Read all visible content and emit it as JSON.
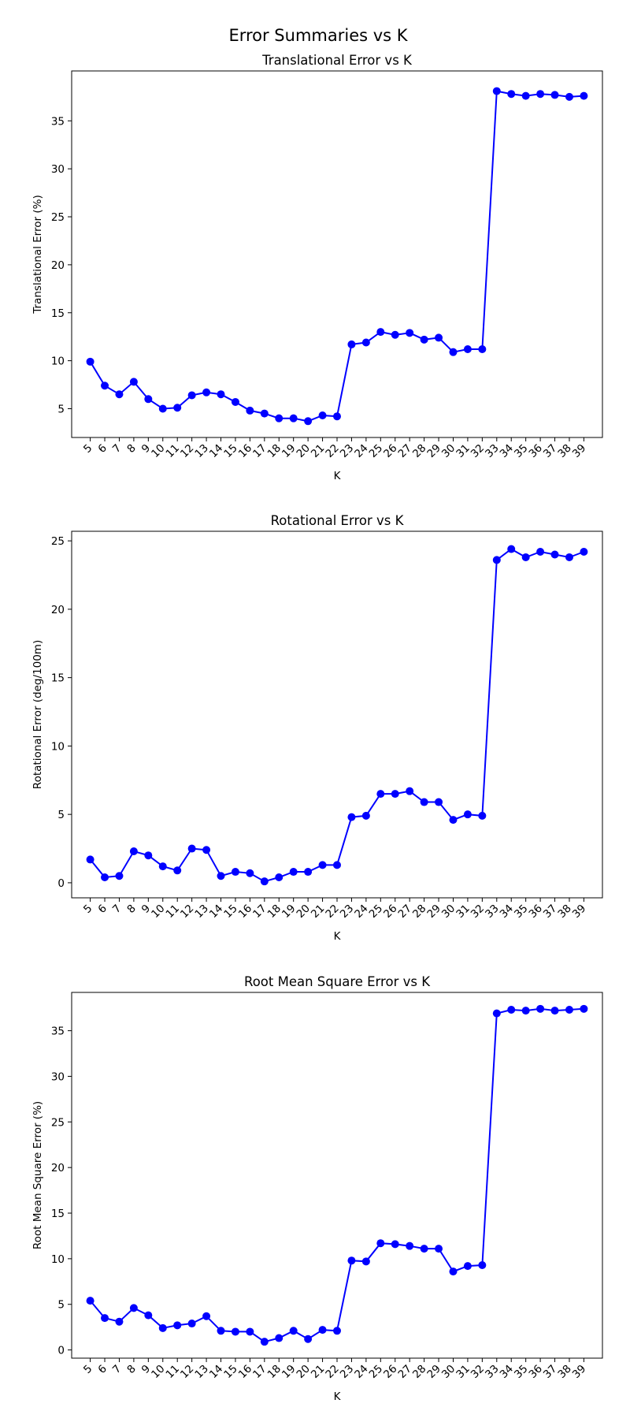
{
  "figure": {
    "title": "Error Summaries vs K"
  },
  "chart_data": [
    {
      "type": "line",
      "title": "Translational Error vs K",
      "xlabel": "K",
      "ylabel": "Translational Error (%)",
      "categories": [
        "5",
        "6",
        "7",
        "8",
        "9",
        "10",
        "11",
        "12",
        "13",
        "14",
        "15",
        "16",
        "17",
        "18",
        "19",
        "20",
        "21",
        "22",
        "23",
        "24",
        "25",
        "26",
        "27",
        "28",
        "29",
        "30",
        "31",
        "32",
        "33",
        "34",
        "35",
        "36",
        "37",
        "38",
        "39"
      ],
      "values": [
        9.9,
        7.4,
        6.5,
        7.8,
        6.0,
        5.0,
        5.1,
        6.4,
        6.7,
        6.5,
        5.7,
        4.8,
        4.5,
        4.0,
        4.0,
        3.7,
        4.3,
        4.2,
        11.7,
        11.9,
        13.0,
        12.7,
        12.9,
        12.2,
        12.4,
        10.9,
        11.2,
        11.2,
        38.1,
        37.8,
        37.6,
        37.8,
        37.7,
        37.5,
        37.6
      ],
      "ylim": [
        2.0,
        40.2
      ],
      "yticks": [
        5,
        10,
        15,
        20,
        25,
        30,
        35
      ],
      "grid": false,
      "color": "#0000ff"
    },
    {
      "type": "line",
      "title": "Rotational Error vs K",
      "xlabel": "K",
      "ylabel": "Rotational Error (deg/100m)",
      "categories": [
        "5",
        "6",
        "7",
        "8",
        "9",
        "10",
        "11",
        "12",
        "13",
        "14",
        "15",
        "16",
        "17",
        "18",
        "19",
        "20",
        "21",
        "22",
        "23",
        "24",
        "25",
        "26",
        "27",
        "28",
        "29",
        "30",
        "31",
        "32",
        "33",
        "34",
        "35",
        "36",
        "37",
        "38",
        "39"
      ],
      "values": [
        1.7,
        0.4,
        0.5,
        2.3,
        2.0,
        1.2,
        0.9,
        2.5,
        2.4,
        0.5,
        0.8,
        0.7,
        0.1,
        0.4,
        0.8,
        0.8,
        1.3,
        1.3,
        4.8,
        4.9,
        6.5,
        6.5,
        6.7,
        5.9,
        5.9,
        4.6,
        5.0,
        4.9,
        23.6,
        24.4,
        23.8,
        24.2,
        24.0,
        23.8,
        24.2
      ],
      "ylim": [
        -1.1,
        25.7
      ],
      "yticks": [
        0,
        5,
        10,
        15,
        20,
        25
      ],
      "grid": false,
      "color": "#0000ff"
    },
    {
      "type": "line",
      "title": "Root Mean Square Error vs K",
      "xlabel": "K",
      "ylabel": "Root Mean Square Error (%)",
      "categories": [
        "5",
        "6",
        "7",
        "8",
        "9",
        "10",
        "11",
        "12",
        "13",
        "14",
        "15",
        "16",
        "17",
        "18",
        "19",
        "20",
        "21",
        "22",
        "23",
        "24",
        "25",
        "26",
        "27",
        "28",
        "29",
        "30",
        "31",
        "32",
        "33",
        "34",
        "35",
        "36",
        "37",
        "38",
        "39"
      ],
      "values": [
        5.4,
        3.5,
        3.1,
        4.6,
        3.8,
        2.4,
        2.7,
        2.9,
        3.7,
        2.1,
        2.0,
        2.0,
        0.9,
        1.3,
        2.1,
        1.2,
        2.2,
        2.1,
        9.8,
        9.7,
        11.7,
        11.6,
        11.4,
        11.1,
        11.1,
        8.6,
        9.2,
        9.3,
        36.9,
        37.3,
        37.2,
        37.4,
        37.2,
        37.3,
        37.4
      ],
      "ylim": [
        -0.9,
        39.2
      ],
      "yticks": [
        0,
        5,
        10,
        15,
        20,
        25,
        30,
        35
      ],
      "grid": false,
      "color": "#0000ff"
    }
  ]
}
